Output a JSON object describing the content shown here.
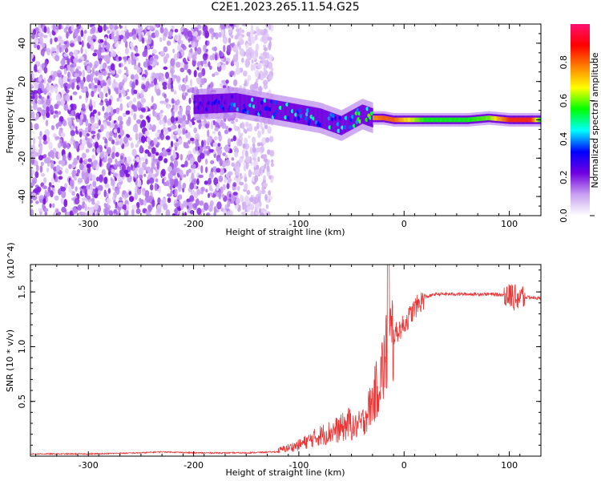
{
  "title": "C2E1.2023.265.11.54.G25",
  "chart_data": [
    {
      "type": "heatmap",
      "xlabel": "Height of straight line (km)",
      "ylabel": "Frequency (Hz)",
      "xlim": [
        -355,
        130
      ],
      "ylim": [
        -50,
        50
      ],
      "xticks": [
        -300,
        -200,
        -100,
        0,
        100
      ],
      "yticks": [
        -40,
        -20,
        0,
        20,
        40
      ],
      "colorbar": {
        "label": "Normalized spectral amplitude",
        "range": [
          0.0,
          1.0
        ],
        "ticks": [
          "0.0",
          "0.2",
          "0.4",
          "0.6",
          "0.8"
        ],
        "tick_values": [
          0.0,
          0.2,
          0.4,
          0.6,
          0.8
        ],
        "colors": [
          "#ffffff",
          "#c8a0f0",
          "#7000e0",
          "#0000ff",
          "#00ffff",
          "#00ff00",
          "#ffff00",
          "#ff8000",
          "#ff0000",
          "#ff1070"
        ]
      },
      "ridge": {
        "note_free": true,
        "x": [
          -200,
          -160,
          -140,
          -120,
          -100,
          -80,
          -60,
          -40,
          -30,
          -20,
          -10,
          0,
          20,
          40,
          60,
          80,
          100,
          120,
          130
        ],
        "y": [
          8,
          9,
          7,
          5,
          3,
          1,
          -3,
          3,
          1,
          1,
          0,
          0,
          0,
          0,
          0,
          1,
          0,
          0,
          0
        ],
        "amplitude": [
          0.25,
          0.4,
          0.45,
          0.45,
          0.45,
          0.45,
          0.45,
          0.55,
          0.75,
          0.8,
          0.8,
          0.7,
          0.55,
          0.55,
          0.55,
          0.6,
          0.85,
          0.85,
          0.5
        ]
      },
      "noise_region_x": [
        -355,
        -140
      ]
    },
    {
      "type": "line",
      "xlabel": "Height of straight line (km)",
      "ylabel": "SNR (10 * v/v)",
      "y_multiplier": "(x10^4)",
      "xlim": [
        -355,
        130
      ],
      "ylim": [
        0,
        1.75
      ],
      "xticks": [
        -300,
        -200,
        -100,
        0,
        100
      ],
      "yticks": [
        "0.5",
        "1.0",
        "1.5"
      ],
      "ytick_values": [
        0.5,
        1.0,
        1.5
      ],
      "color": "#ee3333",
      "series": [
        {
          "x": [
            -355,
            -300,
            -250,
            -230,
            -200,
            -150,
            -120,
            -100,
            -80,
            -60,
            -40,
            -30,
            -20,
            -15,
            -10,
            0,
            10,
            20,
            30,
            50,
            80,
            100,
            110,
            120,
            130
          ],
          "y": [
            0.02,
            0.02,
            0.03,
            0.04,
            0.03,
            0.03,
            0.04,
            0.08,
            0.15,
            0.2,
            0.3,
            0.5,
            0.8,
            1.0,
            1.1,
            1.2,
            1.35,
            1.45,
            1.48,
            1.48,
            1.48,
            1.47,
            1.45,
            1.45,
            1.44
          ]
        }
      ]
    }
  ]
}
